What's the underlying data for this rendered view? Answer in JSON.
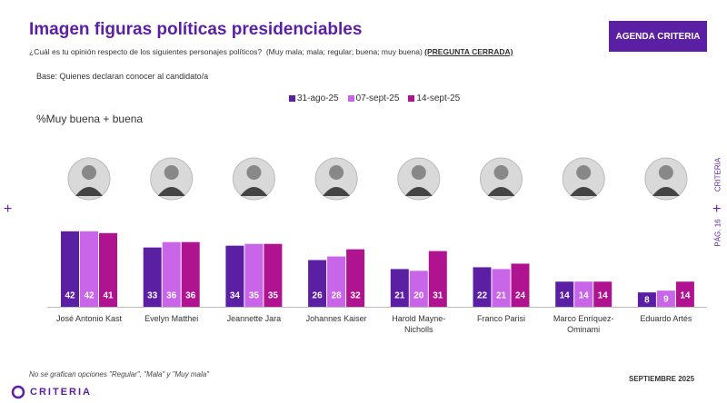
{
  "header": {
    "title": "Imagen figuras políticas presidenciables",
    "question": "¿Cuál es tu opinión respecto de los siguientes personajes políticos?  (Muy mala; mala; regular; buena; muy buena)",
    "question_note": "(PREGUNTA CERRADA)",
    "base": "Base: Quienes declaran conocer al candidato/a",
    "badge": "AGENDA CRITERIA"
  },
  "chart_data": {
    "type": "bar",
    "subtitle": "%Muy buena + buena",
    "categories": [
      "José Antonio Kast",
      "Evelyn Matthei",
      "Jeannette Jara",
      "Johannes Kaiser",
      "Harold Mayne-Nicholls",
      "Franco Parisi",
      "Marco Enríquez-Ominami",
      "Eduardo Artés"
    ],
    "series": [
      {
        "name": "31-ago-25",
        "color": "#5b1fa3",
        "values": [
          42,
          33,
          34,
          26,
          21,
          22,
          14,
          8
        ]
      },
      {
        "name": "07-sept-25",
        "color": "#c865e8",
        "values": [
          42,
          36,
          35,
          28,
          20,
          21,
          14,
          9
        ]
      },
      {
        "name": "14-sept-25",
        "color": "#b0138f",
        "values": [
          41,
          36,
          35,
          32,
          31,
          24,
          14,
          14
        ]
      }
    ]
  },
  "footer": {
    "note": "No se grafican opciones \"Regular\", \"Mala\" y \"Muy mala\"",
    "date": "SEPTIEMBRE 2025",
    "logo": "CRITERIA",
    "page": "PÁG. 16",
    "side_brand": "CRITERIA",
    "plus": "+"
  }
}
